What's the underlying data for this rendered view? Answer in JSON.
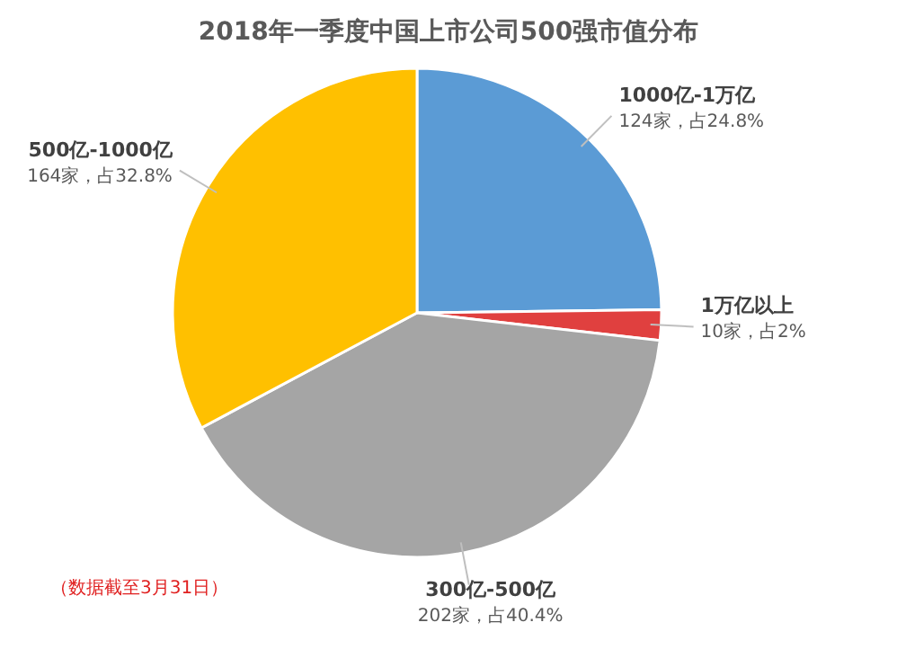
{
  "chart_data": {
    "type": "pie",
    "title": "2018年一季度中国上市公司500强市值分布",
    "categories": [
      "1000亿-1万亿",
      "1万亿以上",
      "300亿-500亿",
      "500亿-1000亿"
    ],
    "values": [
      24.8,
      2,
      40.4,
      32.8
    ],
    "colors": [
      "#5b9bd5",
      "#e0403f",
      "#a5a5a5",
      "#ffc000"
    ],
    "value_labels": [
      "124家，占24.8%",
      "10家，占2%",
      "202家，占40.4%",
      "164家，占32.8%"
    ],
    "annotations": [
      "（数据截至3月31日）"
    ]
  }
}
